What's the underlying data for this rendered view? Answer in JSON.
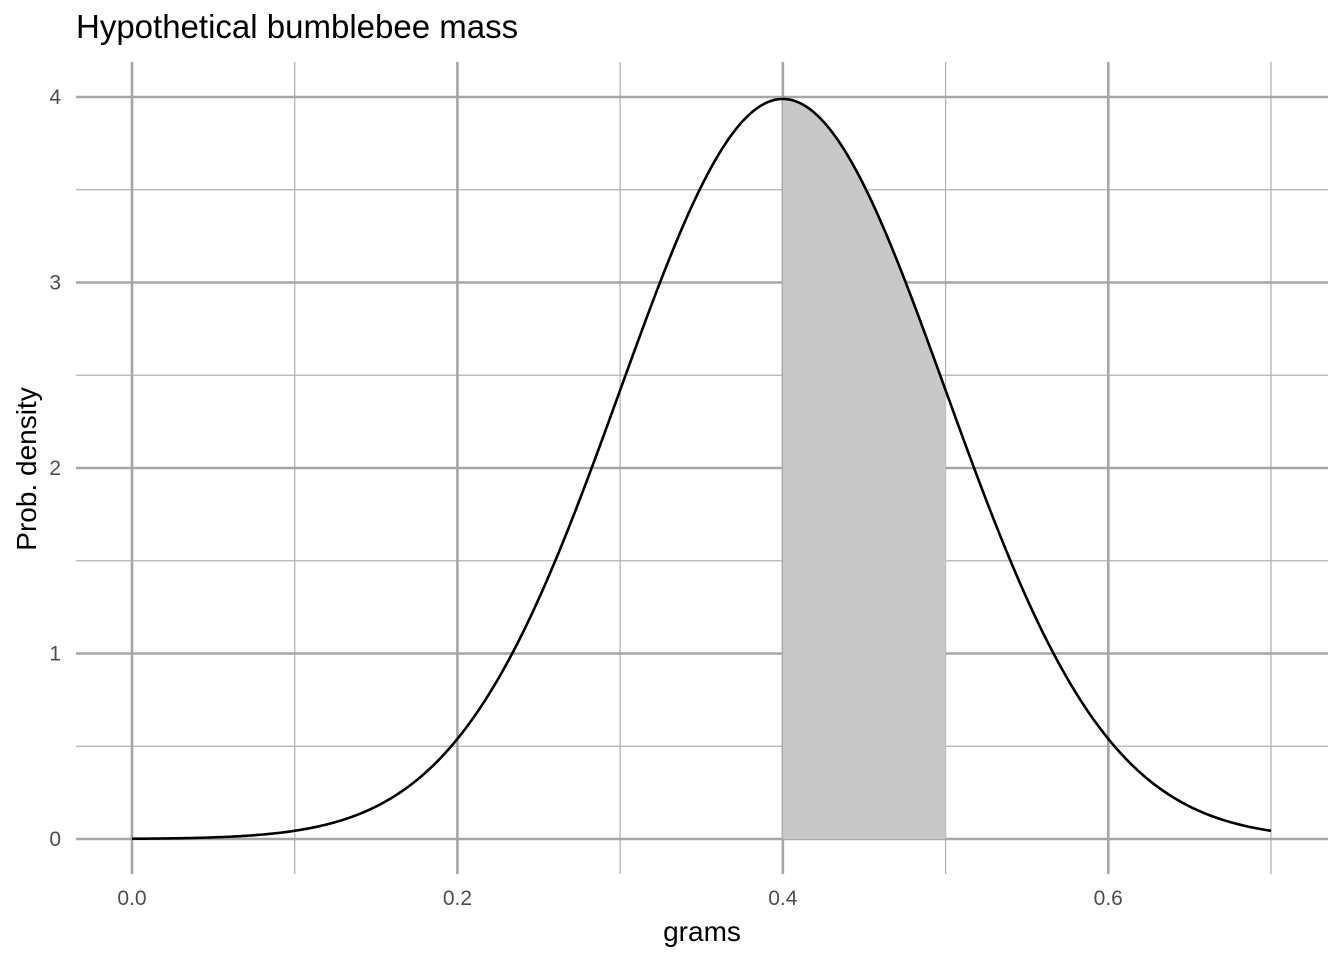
{
  "chart_data": {
    "type": "area",
    "title": "Hypothetical bumblebee mass",
    "xlabel": "grams",
    "ylabel": "Prob. density",
    "xlim": [
      0,
      0.7
    ],
    "ylim": [
      0,
      4
    ],
    "x_ticks": [
      "0.0",
      "0.2",
      "0.4",
      "0.6"
    ],
    "y_ticks": [
      "0",
      "1",
      "2",
      "3",
      "4"
    ],
    "grid": true,
    "series": [
      {
        "kind": "line",
        "distribution": "normal",
        "mean": 0.4,
        "sd": 0.1,
        "x": [
          0,
          0.05,
          0.1,
          0.15,
          0.2,
          0.25,
          0.3,
          0.35,
          0.4,
          0.45,
          0.5,
          0.55,
          0.6,
          0.65,
          0.7
        ],
        "y": [
          0.0013,
          0.0087,
          0.0443,
          0.1753,
          0.5399,
          1.2952,
          2.4197,
          3.5207,
          3.9894,
          3.5207,
          2.4197,
          1.2952,
          0.5399,
          0.1753,
          0.0443
        ],
        "color": "#000000"
      },
      {
        "kind": "shaded_area",
        "x_range": [
          0.4,
          0.5
        ],
        "color": "#c8c8c8"
      }
    ]
  }
}
